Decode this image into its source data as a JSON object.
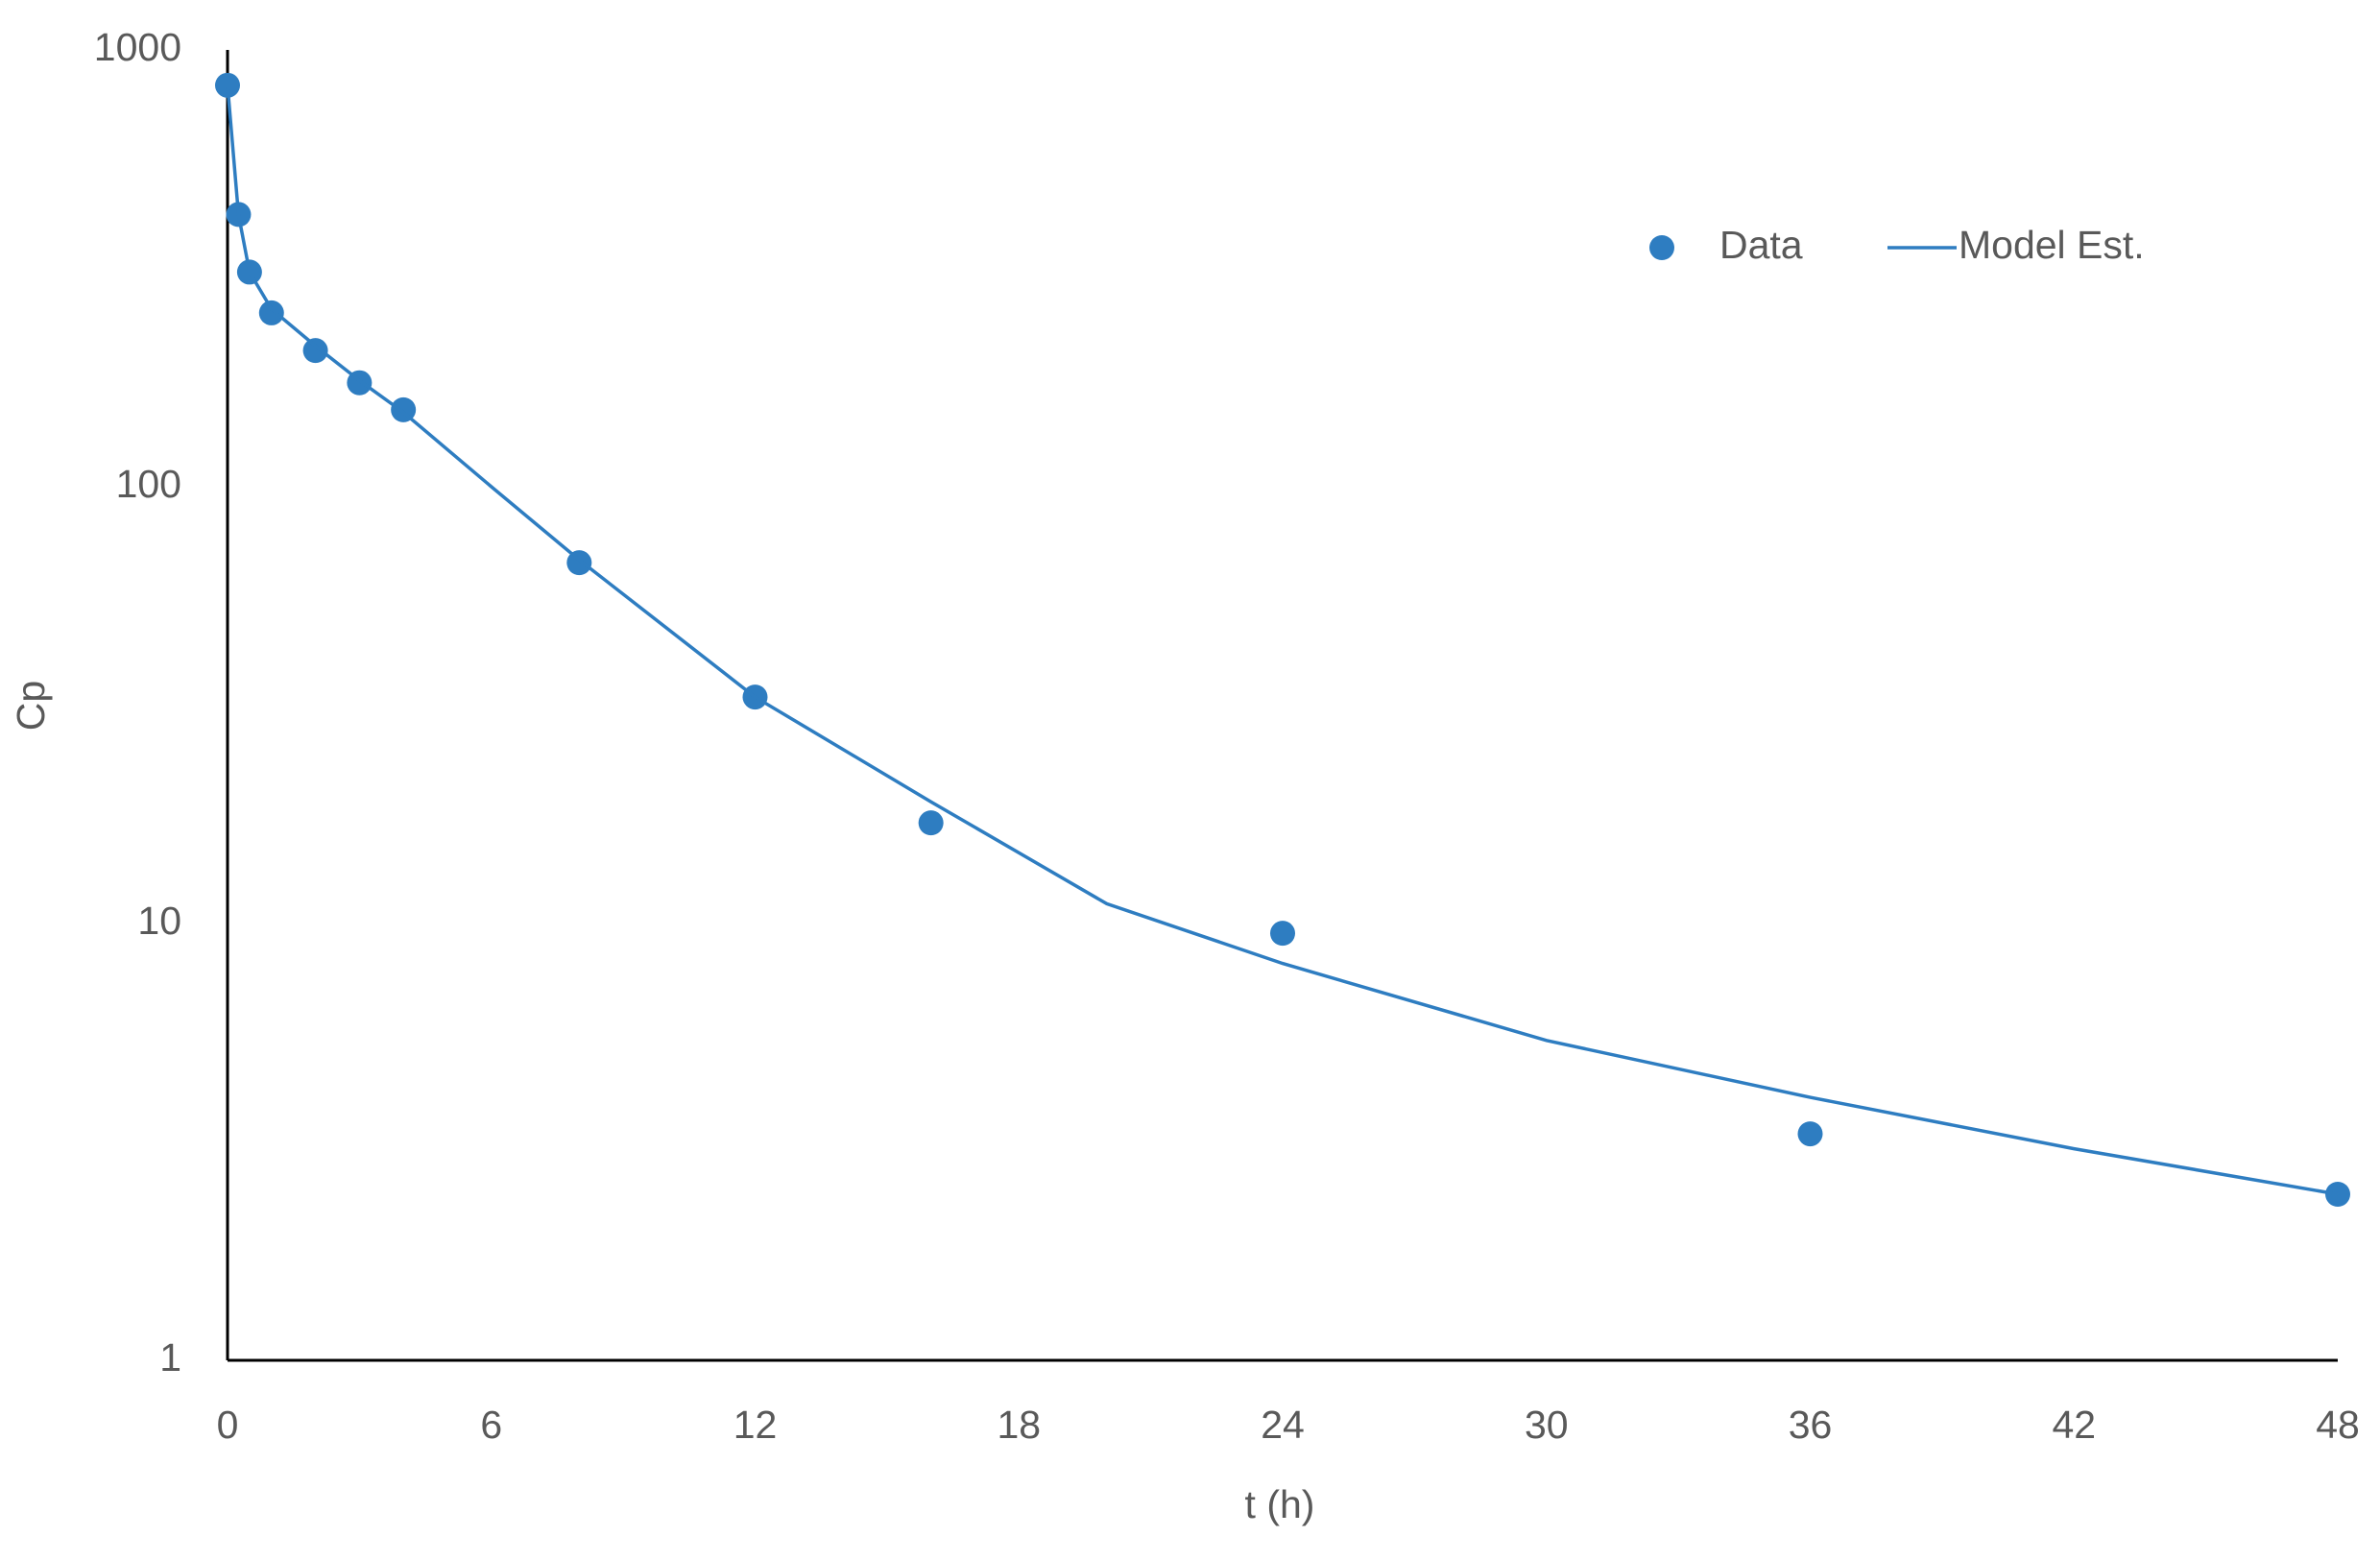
{
  "chart_data": {
    "type": "scatter",
    "x_label": "t (h)",
    "y_label": "Cp",
    "xlim": [
      0,
      48
    ],
    "xticks": [
      0,
      6,
      12,
      18,
      24,
      30,
      36,
      42,
      48
    ],
    "ylim": [
      1,
      1000
    ],
    "yticks": [
      1,
      10,
      100,
      1000
    ],
    "y_log": true,
    "grid": false,
    "legend": "top-right",
    "series": [
      {
        "name": "Data",
        "color": "#2e7dc1",
        "style": "markers",
        "x": [
          0,
          0.25,
          0.5,
          1,
          2,
          3,
          4,
          8,
          12,
          16,
          24,
          36,
          48
        ],
        "values": [
          830,
          420,
          310,
          250,
          205,
          173,
          150,
          67,
          33,
          17,
          9.5,
          3.3,
          2.4
        ]
      },
      {
        "name": "Model Est.",
        "color": "#2e7dc1",
        "style": "line",
        "x": [
          0,
          0.25,
          0.5,
          1,
          2,
          3,
          4,
          6,
          8,
          12,
          16,
          20,
          24,
          30,
          36,
          42,
          48
        ],
        "values": [
          830,
          420,
          310,
          255,
          210,
          175,
          148,
          100,
          68,
          33,
          19,
          11.1,
          8.1,
          5.4,
          4.0,
          3.05,
          2.4
        ]
      }
    ]
  }
}
